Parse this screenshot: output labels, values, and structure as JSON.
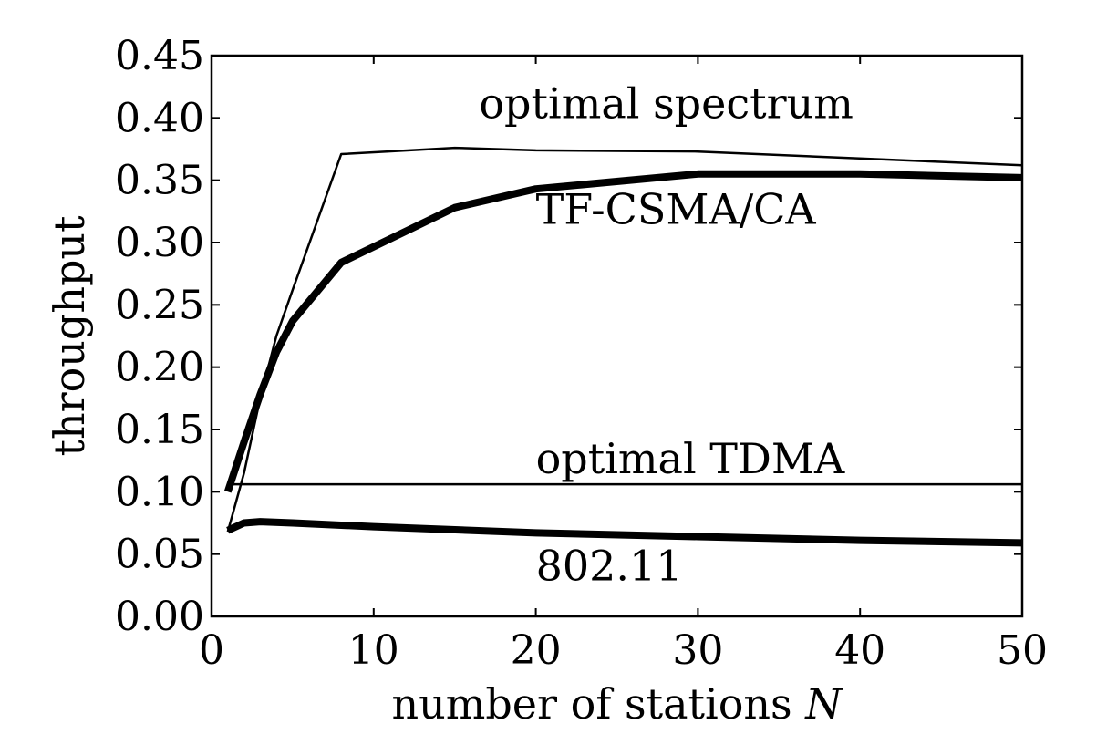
{
  "chart_data": {
    "type": "line",
    "title": "",
    "xlabel": "number of stations",
    "xlabel_var": "N",
    "ylabel": "throughput",
    "xlim": [
      0,
      50
    ],
    "ylim": [
      0,
      0.45
    ],
    "xticks": [
      "0",
      "10",
      "20",
      "30",
      "40",
      "50"
    ],
    "yticks": [
      "0.00",
      "0.05",
      "0.10",
      "0.15",
      "0.20",
      "0.25",
      "0.30",
      "0.35",
      "0.40",
      "0.45"
    ],
    "grid": false,
    "legend": "none",
    "series": [
      {
        "name": "optimal spectrum",
        "color": "#000000",
        "weight": "thin",
        "x": [
          1,
          2,
          3,
          4,
          5,
          8,
          15,
          20,
          30,
          50
        ],
        "y": [
          0.068,
          0.115,
          0.175,
          0.225,
          0.262,
          0.371,
          0.376,
          0.374,
          0.373,
          0.362
        ]
      },
      {
        "name": "TF-CSMA/CA",
        "color": "#000000",
        "weight": "thick",
        "x": [
          1,
          2,
          3,
          4,
          5,
          8,
          15,
          20,
          30,
          40,
          50
        ],
        "y": [
          0.1,
          0.14,
          0.178,
          0.212,
          0.237,
          0.284,
          0.328,
          0.343,
          0.355,
          0.355,
          0.352
        ]
      },
      {
        "name": "optimal TDMA",
        "color": "#000000",
        "weight": "thin",
        "x": [
          1,
          50
        ],
        "y": [
          0.106,
          0.106
        ]
      },
      {
        "name": "802.11",
        "color": "#000000",
        "weight": "thick",
        "x": [
          1,
          2,
          3,
          5,
          10,
          20,
          30,
          40,
          50
        ],
        "y": [
          0.069,
          0.075,
          0.076,
          0.075,
          0.072,
          0.067,
          0.064,
          0.061,
          0.059
        ]
      }
    ],
    "annotations": [
      {
        "text": "optimal spectrum",
        "x": 16.5,
        "y": 0.4
      },
      {
        "text": "TF-CSMA/CA",
        "x": 20,
        "y": 0.315
      },
      {
        "text": "optimal TDMA",
        "x": 20,
        "y": 0.115
      },
      {
        "text": "802.11",
        "x": 20,
        "y": 0.029
      }
    ]
  }
}
